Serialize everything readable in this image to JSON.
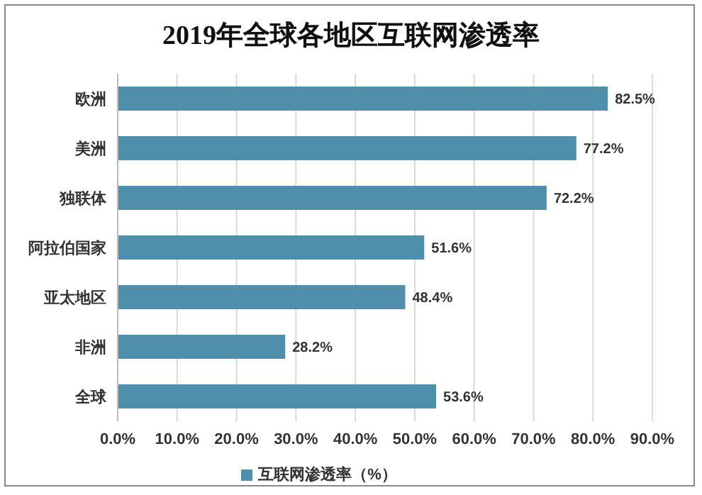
{
  "chart_data": {
    "type": "bar",
    "orientation": "horizontal",
    "title": "2019年全球各地区互联网渗透率",
    "categories": [
      "欧洲",
      "美洲",
      "独联体",
      "阿拉伯国家",
      "亚太地区",
      "非洲",
      "全球"
    ],
    "series": [
      {
        "name": "互联网渗透率（%）",
        "color": "#4f8fab",
        "values": [
          82.5,
          77.2,
          72.2,
          51.6,
          48.4,
          28.2,
          53.6
        ],
        "value_labels": [
          "82.5%",
          "77.2%",
          "72.2%",
          "51.6%",
          "48.4%",
          "28.2%",
          "53.6%"
        ]
      }
    ],
    "xlim": [
      0,
      90
    ],
    "xticks": [
      {
        "value": 0,
        "label": "0.0%"
      },
      {
        "value": 10,
        "label": "10.0%"
      },
      {
        "value": 20,
        "label": "20.0%"
      },
      {
        "value": 30,
        "label": "30.0%"
      },
      {
        "value": 40,
        "label": "40.0%"
      },
      {
        "value": 50,
        "label": "50.0%"
      },
      {
        "value": 60,
        "label": "60.0%"
      },
      {
        "value": 70,
        "label": "70.0%"
      },
      {
        "value": 80,
        "label": "80.0%"
      },
      {
        "value": 90,
        "label": "90.0%"
      }
    ],
    "grid": "x",
    "legend": "bottom"
  }
}
